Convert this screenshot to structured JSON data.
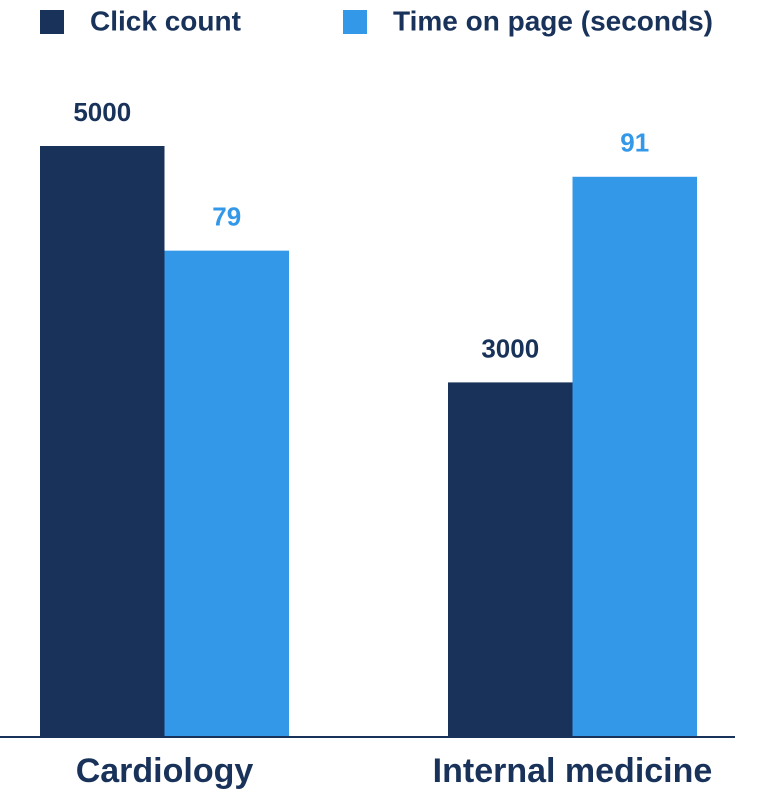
{
  "chart_data": {
    "type": "bar",
    "categories": [
      "Cardiology",
      "Internal medicine"
    ],
    "series": [
      {
        "name": "Click count",
        "color": "#18325a",
        "values": [
          5000,
          3000
        ]
      },
      {
        "name": "Time on page (seconds)",
        "color": "#3498e8",
        "values": [
          79,
          91
        ],
        "axis": "y2"
      }
    ],
    "ylim": [
      0,
      5000
    ],
    "y2lim": [
      0,
      96
    ],
    "grid": false
  }
}
